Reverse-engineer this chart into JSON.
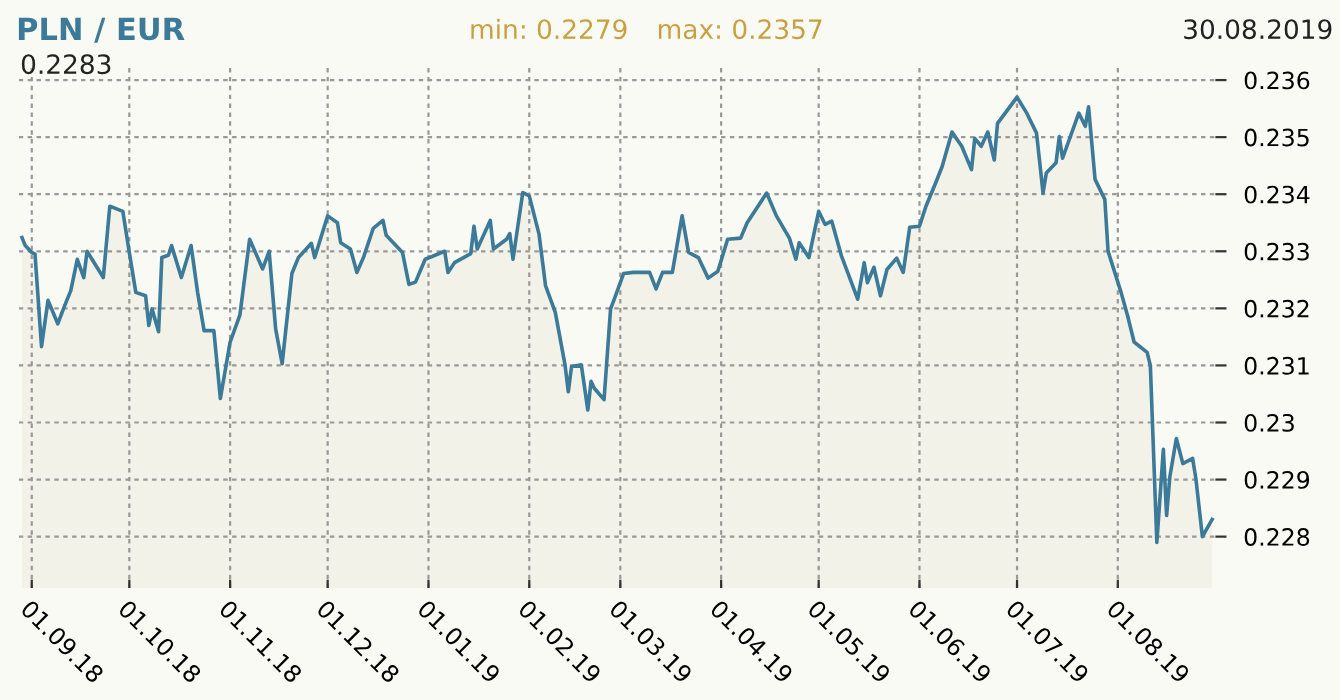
{
  "chart_data": {
    "type": "area",
    "title": "PLN / EUR",
    "annotations": [
      "min: 0.2279",
      "max: 0.2357",
      "30.08.2019",
      "0.2283"
    ],
    "x": [
      "2018-08-29",
      "2018-08-30",
      "2018-09-01",
      "2018-09-02",
      "2018-09-04",
      "2018-09-06",
      "2018-09-09",
      "2018-09-11",
      "2018-09-13",
      "2018-09-15",
      "2018-09-17",
      "2018-09-18",
      "2018-09-23",
      "2018-09-25",
      "2018-09-29",
      "2018-10-01",
      "2018-10-03",
      "2018-10-06",
      "2018-10-07",
      "2018-10-08",
      "2018-10-10",
      "2018-10-11",
      "2018-10-13",
      "2018-10-14",
      "2018-10-17",
      "2018-10-20",
      "2018-10-22",
      "2018-10-24",
      "2018-10-27",
      "2018-10-29",
      "2018-11-01",
      "2018-11-04",
      "2018-11-07",
      "2018-11-11",
      "2018-11-13",
      "2018-11-15",
      "2018-11-17",
      "2018-11-20",
      "2018-11-22",
      "2018-11-26",
      "2018-11-27",
      "2018-12-01",
      "2018-12-04",
      "2018-12-05",
      "2018-12-08",
      "2018-12-10",
      "2018-12-12",
      "2018-12-15",
      "2018-12-18",
      "2018-12-19",
      "2018-12-24",
      "2018-12-26",
      "2018-12-28",
      "2018-12-31",
      "2019-01-06",
      "2019-01-07",
      "2019-01-09",
      "2019-01-14",
      "2019-01-15",
      "2019-01-16",
      "2019-01-20",
      "2019-01-21",
      "2019-01-25",
      "2019-01-26",
      "2019-01-27",
      "2019-01-30",
      "2019-02-01",
      "2019-02-04",
      "2019-02-06",
      "2019-02-09",
      "2019-02-12",
      "2019-02-13",
      "2019-02-14",
      "2019-02-17",
      "2019-02-19",
      "2019-02-20",
      "2019-02-21",
      "2019-02-24",
      "2019-02-26",
      "2019-02-27",
      "2019-03-02",
      "2019-03-05",
      "2019-03-10",
      "2019-03-12",
      "2019-03-14",
      "2019-03-17",
      "2019-03-20",
      "2019-03-22",
      "2019-03-25",
      "2019-03-28",
      "2019-03-31",
      "2019-04-03",
      "2019-04-07",
      "2019-04-09",
      "2019-04-15",
      "2019-04-18",
      "2019-04-22",
      "2019-04-24",
      "2019-04-25",
      "2019-04-28",
      "2019-05-01",
      "2019-05-03",
      "2019-05-05",
      "2019-05-08",
      "2019-05-13",
      "2019-05-15",
      "2019-05-16",
      "2019-05-18",
      "2019-05-20",
      "2019-05-22",
      "2019-05-25",
      "2019-05-27",
      "2019-05-29",
      "2019-06-01",
      "2019-06-03",
      "2019-06-06",
      "2019-06-08",
      "2019-06-11",
      "2019-06-14",
      "2019-06-17",
      "2019-06-18",
      "2019-06-20",
      "2019-06-22",
      "2019-06-24",
      "2019-06-25",
      "2019-07-01",
      "2019-07-04",
      "2019-07-07",
      "2019-07-09",
      "2019-07-10",
      "2019-07-13",
      "2019-07-14",
      "2019-07-15",
      "2019-07-20",
      "2019-07-22",
      "2019-07-23",
      "2019-07-25",
      "2019-07-28",
      "2019-07-29",
      "2019-08-02",
      "2019-08-04",
      "2019-08-06",
      "2019-08-10",
      "2019-08-11",
      "2019-08-13",
      "2019-08-15",
      "2019-08-16",
      "2019-08-17",
      "2019-08-19",
      "2019-08-21",
      "2019-08-24",
      "2019-08-25",
      "2019-08-27",
      "2019-08-30"
    ],
    "series": [
      {
        "color": "#3c7a99",
        "values": [
          0.23324,
          0.2331,
          0.23298,
          0.23295,
          0.23133,
          0.23214,
          0.23173,
          0.23203,
          0.23231,
          0.23286,
          0.23254,
          0.233,
          0.23254,
          0.23379,
          0.2337,
          0.23298,
          0.23228,
          0.23222,
          0.2317,
          0.23199,
          0.23159,
          0.23289,
          0.23293,
          0.2331,
          0.23254,
          0.2331,
          0.23228,
          0.23161,
          0.23161,
          0.23042,
          0.23141,
          0.23188,
          0.23321,
          0.23269,
          0.233,
          0.23164,
          0.23103,
          0.23261,
          0.23289,
          0.23314,
          0.23289,
          0.23362,
          0.2335,
          0.23315,
          0.23304,
          0.23263,
          0.23289,
          0.2334,
          0.23354,
          0.23328,
          0.23298,
          0.23242,
          0.23246,
          0.23286,
          0.233,
          0.23263,
          0.2328,
          0.23296,
          0.23344,
          0.23304,
          0.23354,
          0.23304,
          0.23321,
          0.23331,
          0.23286,
          0.23403,
          0.23397,
          0.2333,
          0.2324,
          0.23193,
          0.23101,
          0.23054,
          0.23098,
          0.23101,
          0.23022,
          0.23072,
          0.2306,
          0.2304,
          0.23199,
          0.23214,
          0.23261,
          0.23263,
          0.23263,
          0.23234,
          0.23263,
          0.23263,
          0.23362,
          0.23298,
          0.23289,
          0.23253,
          0.23265,
          0.23321,
          0.23323,
          0.2335,
          0.23402,
          0.23362,
          0.23323,
          0.23286,
          0.23315,
          0.23289,
          0.2337,
          0.23347,
          0.23353,
          0.23292,
          0.23216,
          0.2328,
          0.23245,
          0.23272,
          0.23222,
          0.23268,
          0.23288,
          0.23263,
          0.23342,
          0.23344,
          0.23379,
          0.2342,
          0.23449,
          0.23509,
          0.23484,
          0.23443,
          0.23498,
          0.23484,
          0.23509,
          0.2346,
          0.23524,
          0.2357,
          0.23542,
          0.23507,
          0.23402,
          0.23437,
          0.23455,
          0.23501,
          0.23463,
          0.23542,
          0.23519,
          0.23553,
          0.23426,
          0.23391,
          0.233,
          0.23228,
          0.23187,
          0.23141,
          0.23123,
          0.231,
          0.2279,
          0.22953,
          0.22837,
          0.22905,
          0.22972,
          0.22928,
          0.22937,
          0.22902,
          0.228,
          0.2283
        ]
      }
    ],
    "xlim": [
      "2018-08-28",
      "2019-08-31"
    ],
    "xticks": [
      {
        "value": "2018-09-01",
        "label": "01.09.18"
      },
      {
        "value": "2018-10-01",
        "label": "01.10.18"
      },
      {
        "value": "2018-11-01",
        "label": "01.11.18"
      },
      {
        "value": "2018-12-01",
        "label": "01.12.18"
      },
      {
        "value": "2019-01-01",
        "label": "01.01.19"
      },
      {
        "value": "2019-02-01",
        "label": "01.02.19"
      },
      {
        "value": "2019-03-01",
        "label": "01.03.19"
      },
      {
        "value": "2019-04-01",
        "label": "01.04.19"
      },
      {
        "value": "2019-05-01",
        "label": "01.05.19"
      },
      {
        "value": "2019-06-01",
        "label": "01.06.19"
      },
      {
        "value": "2019-07-01",
        "label": "01.07.19"
      },
      {
        "value": "2019-08-01",
        "label": "01.08.19"
      }
    ],
    "ylim": [
      0.2271,
      0.23625
    ],
    "yticks": [
      0.228,
      0.229,
      0.23,
      0.231,
      0.232,
      0.233,
      0.234,
      0.235,
      0.236
    ],
    "grid": true,
    "legend": false
  }
}
